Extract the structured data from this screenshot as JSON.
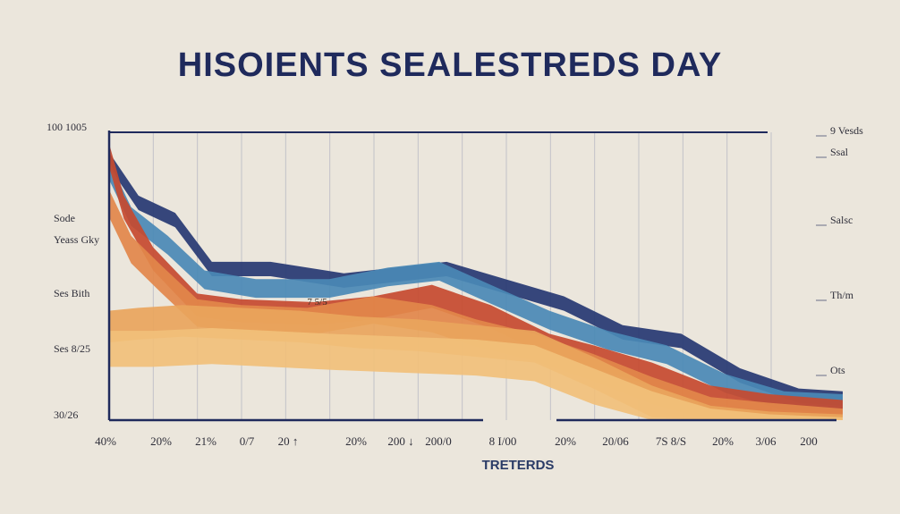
{
  "title": "HISOIENTS  SEALESTREDS DAY",
  "colors": {
    "background": "#ebe6dc",
    "axis": "#1f2a5c",
    "grid": "#b9b8c4",
    "title": "#1f2a5c",
    "xlabel": "#2a3b66"
  },
  "chart_data": {
    "type": "area",
    "title": "HISOIENTS  SEALESTREDS DAY",
    "xlabel": "TRETERDS",
    "ylabel": "",
    "grid": true,
    "legend": "none",
    "ylim": [
      0,
      100
    ],
    "x_tick_labels": [
      "40%",
      "20%",
      "21%",
      "0/7",
      "20 ↑",
      "20%",
      "200 ↓",
      "200/0",
      "8 I/00",
      "20%",
      "20/06",
      "7S 8/S",
      "20%",
      "3/06",
      "200"
    ],
    "y_tick_labels_left": [
      "100 1005",
      "Sode",
      "Yeass Gky",
      "Ses Bith",
      "Ses 8/25",
      "30/26"
    ],
    "y_tick_labels_right": [
      "9 Vesds",
      "Ssal",
      "Salsc",
      "Th/m",
      "Ots"
    ],
    "annotations": [
      {
        "text": "7 5/5",
        "x": 27,
        "y": 40
      }
    ],
    "series": [
      {
        "color": "#263872",
        "x": [
          0,
          4,
          9,
          14,
          22,
          32,
          39,
          46,
          54,
          62,
          70,
          78,
          86,
          94,
          100
        ],
        "y": [
          93,
          78,
          72,
          55,
          55,
          51,
          53,
          55,
          49,
          43,
          33,
          30,
          18,
          11,
          10
        ]
      },
      {
        "color": "#4a89b5",
        "x": [
          0,
          3,
          8,
          13,
          20,
          30,
          38,
          45,
          52,
          60,
          68,
          76,
          84,
          92,
          100
        ],
        "y": [
          90,
          74,
          64,
          52,
          49,
          49,
          53,
          55,
          47,
          38,
          31,
          26,
          16,
          10,
          9
        ]
      },
      {
        "color": "#c64a2f",
        "x": [
          0,
          2,
          6,
          12,
          18,
          28,
          36,
          44,
          52,
          60,
          66,
          74,
          82,
          90,
          100
        ],
        "y": [
          96,
          78,
          60,
          44,
          42,
          41,
          43,
          47,
          40,
          30,
          26,
          20,
          12,
          9,
          7
        ]
      },
      {
        "color": "#e2874a",
        "x": [
          0,
          3,
          7,
          12,
          18,
          27,
          36,
          44,
          50,
          58,
          66,
          74,
          82,
          90,
          100
        ],
        "y": [
          80,
          64,
          54,
          42,
          40,
          39,
          43,
          40,
          35,
          30,
          23,
          15,
          8,
          6,
          4
        ]
      },
      {
        "color": "#e9a55c",
        "x": [
          0,
          4,
          10,
          18,
          26,
          34,
          42,
          50,
          58,
          66,
          74,
          82,
          90,
          100
        ],
        "y": [
          38,
          39,
          40,
          39,
          38,
          36,
          35,
          33,
          31,
          22,
          12,
          5,
          3,
          2
        ]
      },
      {
        "color": "#f1c07a",
        "x": [
          0,
          6,
          14,
          22,
          30,
          40,
          50,
          58,
          66,
          74,
          82,
          90,
          100
        ],
        "y": [
          31,
          31,
          32,
          31,
          30,
          29,
          28,
          26,
          18,
          10,
          4,
          2,
          1
        ]
      }
    ]
  }
}
